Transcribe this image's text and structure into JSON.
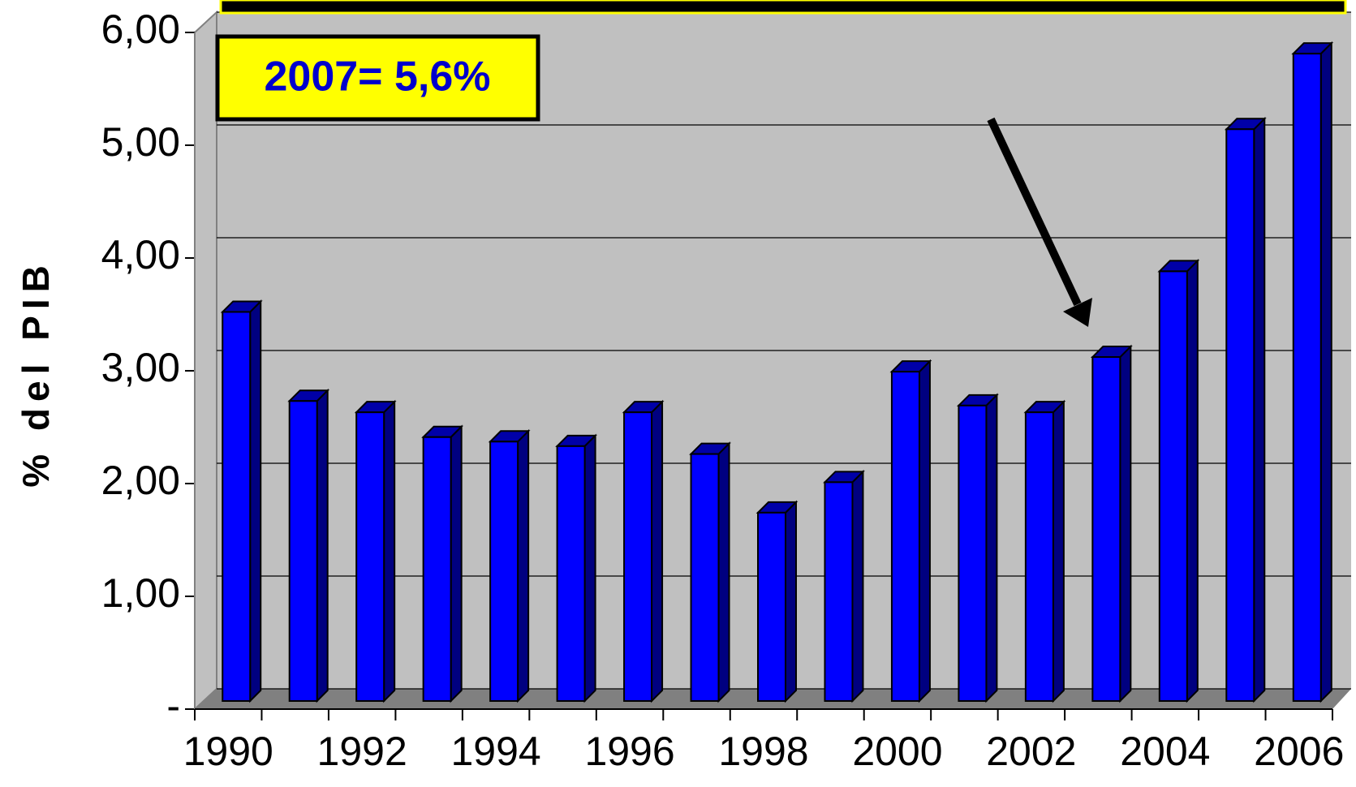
{
  "chart_data": {
    "type": "bar3d",
    "y_label": "% del PIB",
    "annotation": "2007= 5,6%",
    "categories": [
      "1990",
      null,
      "1992",
      null,
      "1994",
      null,
      "1996",
      null,
      "1998",
      null,
      "2000",
      null,
      "2002",
      null,
      "2004",
      null,
      "2006"
    ],
    "values": [
      3.45,
      2.66,
      2.56,
      2.34,
      2.3,
      2.26,
      2.56,
      2.19,
      1.67,
      1.94,
      2.92,
      2.62,
      2.56,
      3.05,
      3.81,
      5.07,
      5.74
    ],
    "color": "#0000ff",
    "ylim": [
      0,
      6
    ],
    "yticks": [
      {
        "value": 0,
        "label": "-"
      },
      {
        "value": 1,
        "label": "1,00"
      },
      {
        "value": 2,
        "label": "2,00"
      },
      {
        "value": 3,
        "label": "3,00"
      },
      {
        "value": 4,
        "label": "4,00"
      },
      {
        "value": 5,
        "label": "5,00"
      },
      {
        "value": 6,
        "label": "6,00"
      }
    ],
    "grid": true
  }
}
